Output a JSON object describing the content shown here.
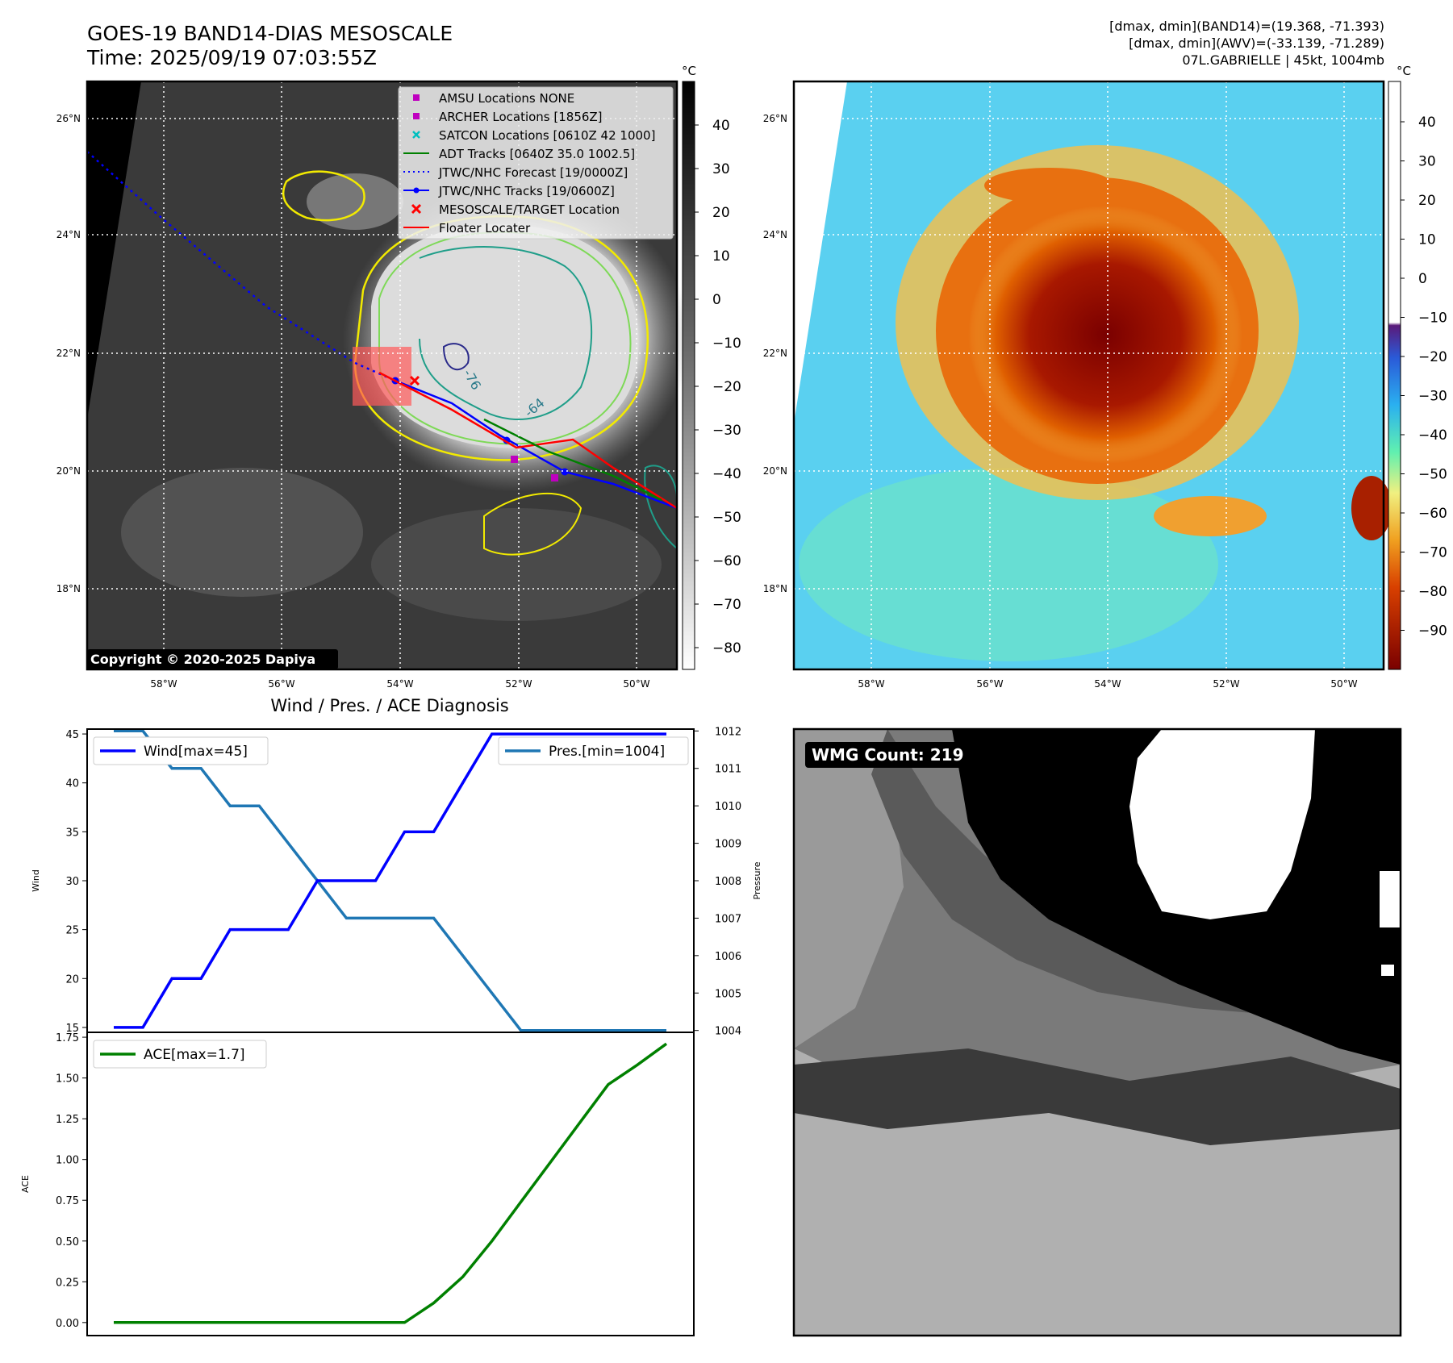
{
  "header": {
    "title": "GOES-19 BAND14-DIAS MESOSCALE",
    "time": "Time: 2025/09/19 07:03:55Z",
    "info_line1": "[dmax, dmin](BAND14)=(19.368, -71.393)",
    "info_line2": "[dmax, dmin](AWV)=(-33.139, -71.289)",
    "info_line3": "07L.GABRIELLE | 45kt, 1004mb"
  },
  "copyright": "Copyright © 2020-2025 Dapiya",
  "map_axes": {
    "lat_labels": [
      "26°N",
      "24°N",
      "22°N",
      "20°N",
      "18°N"
    ],
    "lon_labels": [
      "58°W",
      "56°W",
      "54°W",
      "52°W",
      "50°W"
    ],
    "colorbar_unit": "°C",
    "ir_colorbar_ticks": [
      "40",
      "30",
      "20",
      "10",
      "0",
      "−10",
      "−20",
      "−30",
      "−40",
      "−50",
      "−60",
      "−70",
      "−80"
    ],
    "awv_colorbar_ticks": [
      "40",
      "30",
      "20",
      "10",
      "0",
      "−10",
      "−20",
      "−30",
      "−40",
      "−50",
      "−60",
      "−70",
      "−80",
      "−90"
    ],
    "contour_labels": [
      "-76",
      "-64"
    ]
  },
  "legend": [
    {
      "label": "AMSU Locations NONE",
      "marker": "square",
      "color": "#bf00bf"
    },
    {
      "label": "ARCHER Locations [1856Z]",
      "marker": "square",
      "color": "#bf00bf"
    },
    {
      "label": "SATCON Locations [0610Z 42 1000]",
      "marker": "x",
      "color": "#00bfbf"
    },
    {
      "label": "ADT Tracks [0640Z 35.0 1002.5]",
      "marker": "line",
      "color": "#008000"
    },
    {
      "label": "JTWC/NHC Forecast [19/0000Z]",
      "marker": "dotted",
      "color": "#0000ff"
    },
    {
      "label": "JTWC/NHC Tracks [19/0600Z]",
      "marker": "line-dot",
      "color": "#0000ff"
    },
    {
      "label": "MESOSCALE/TARGET Location",
      "marker": "x",
      "color": "#ff0000"
    },
    {
      "label": "Floater Locater",
      "marker": "line",
      "color": "#ff0000"
    }
  ],
  "wmg": {
    "label": "WMG Count: 219"
  },
  "colors": {
    "wind": "#0000ff",
    "pressure": "#1f77b4",
    "ace": "#008000",
    "jtwc": "#0000ff",
    "floater": "#ff0000"
  },
  "chart_data": [
    {
      "type": "line",
      "title": "Wind / Pres. / ACE Diagnosis",
      "ylabel": "Wind",
      "ylabel_right": "Pressure",
      "x": [
        0,
        1,
        2,
        3,
        4,
        5,
        6,
        7,
        8,
        9,
        10,
        11,
        12,
        13,
        14,
        15,
        16,
        17,
        18,
        19
      ],
      "series": [
        {
          "name": "Wind[max=45]",
          "axis": "left",
          "values": [
            15,
            15,
            20,
            20,
            25,
            25,
            25,
            30,
            30,
            30,
            35,
            35,
            40,
            45,
            45,
            45,
            45,
            45,
            45,
            45
          ]
        },
        {
          "name": "Pres.[min=1004]",
          "axis": "right",
          "values": [
            1012,
            1012,
            1011,
            1011,
            1010,
            1010,
            1009,
            1008,
            1007,
            1007,
            1007,
            1007,
            1006,
            1005,
            1004,
            1004,
            1004,
            1004,
            1004,
            1004
          ]
        }
      ],
      "ylim": [
        14.5,
        45.5
      ],
      "ylim_right": [
        1003.95,
        1012.05
      ],
      "yticks": [
        15,
        20,
        25,
        30,
        35,
        40,
        45
      ],
      "yticks_right": [
        1004,
        1005,
        1006,
        1007,
        1008,
        1009,
        1010,
        1011,
        1012
      ]
    },
    {
      "type": "line",
      "ylabel": "ACE",
      "x": [
        0,
        1,
        2,
        3,
        4,
        5,
        6,
        7,
        8,
        9,
        10,
        11,
        12,
        13,
        14,
        15,
        16,
        17,
        18,
        19
      ],
      "series": [
        {
          "name": "ACE[max=1.7]",
          "values": [
            0,
            0,
            0,
            0,
            0,
            0,
            0,
            0,
            0,
            0,
            0,
            0.12,
            0.28,
            0.5,
            0.74,
            0.98,
            1.22,
            1.46,
            1.58,
            1.71
          ]
        }
      ],
      "ylim": [
        -0.08,
        1.78
      ],
      "yticks": [
        "0.00",
        "0.25",
        "0.50",
        "0.75",
        "1.00",
        "1.25",
        "1.50",
        "1.75"
      ]
    }
  ]
}
